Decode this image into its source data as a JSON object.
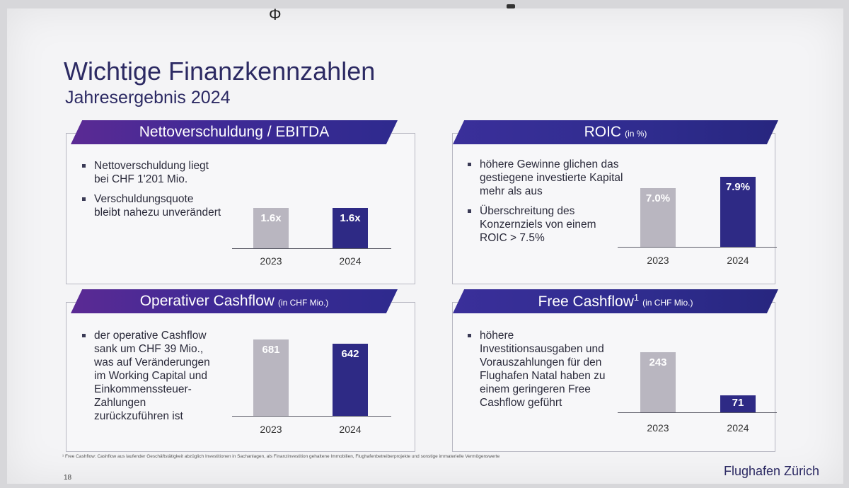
{
  "slide": {
    "title": "Wichtige Finanzkennzahlen",
    "subtitle": "Jahresergebnis 2024",
    "footnote": "¹ Free Cashflow: Cashflow aus laufender Geschäftstätigkeit abzüglich Investitionen in Sachanlagen, als Finanzinvestition gehaltene Immobilien, Flughafenbetreiberprojekte und sonstige immaterielle Vermögenswerte",
    "page_number": "18",
    "logo_text": "Flughafen Zürich"
  },
  "panels": {
    "net_debt": {
      "title": "Nettoverschuldung / EBITDA",
      "bullets": [
        "Nettoverschuldung liegt bei CHF 1'201 Mio.",
        "Verschuldungsquote bleibt nahezu unverändert"
      ],
      "years": [
        "2023",
        "2024"
      ],
      "labels": [
        "1.6x",
        "1.6x"
      ]
    },
    "roic": {
      "title": "ROIC",
      "unit": "(in %)",
      "bullets": [
        "höhere Gewinne glichen das gestiegene investierte Kapital mehr als aus",
        "Überschreitung des Konzernziels von einem ROIC > 7.5%"
      ],
      "years": [
        "2023",
        "2024"
      ],
      "labels": [
        "7.0%",
        "7.9%"
      ]
    },
    "op_cf": {
      "title": "Operativer Cashflow",
      "unit": "(in CHF Mio.)",
      "bullets": [
        "der operative Cashflow sank um CHF 39 Mio., was auf Veränderungen im Working Capital und Einkommenssteuer-Zahlungen zurückzuführen ist"
      ],
      "years": [
        "2023",
        "2024"
      ],
      "labels": [
        "681",
        "642"
      ]
    },
    "free_cf": {
      "title": "Free Cashflow",
      "title_sup": "1",
      "unit": "(in CHF Mio.)",
      "bullets": [
        "höhere Investitionsausgaben und Vorauszahlungen für den Flughafen Natal haben zu einem geringeren Free Cashflow geführt"
      ],
      "years": [
        "2023",
        "2024"
      ],
      "labels": [
        "243",
        "71"
      ]
    }
  },
  "colors": {
    "accent": "#2e2a85",
    "old_bar": "#b9b6c0",
    "title": "#2c2a63"
  }
}
